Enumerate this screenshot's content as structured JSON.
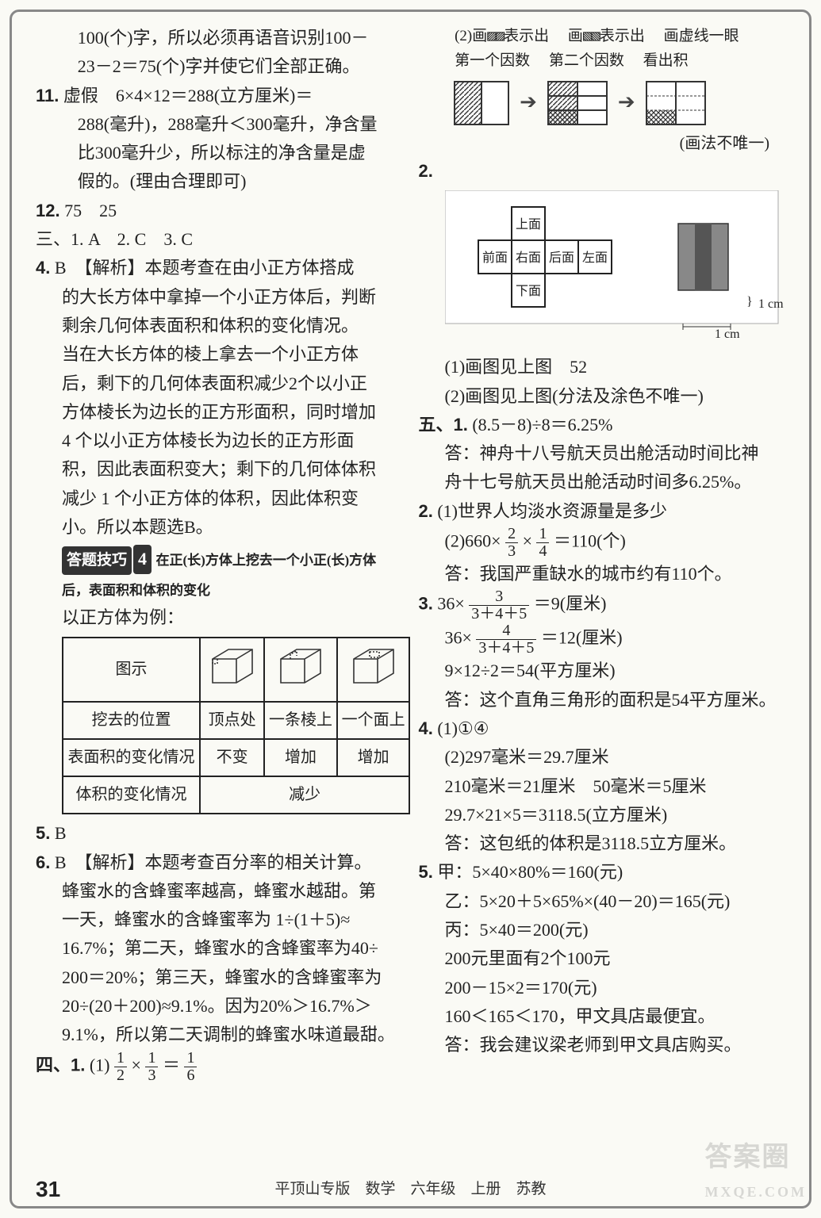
{
  "left": {
    "l1": "100(个)字，所以必须再语音识别100－",
    "l2": "23－2＝75(个)字并使它们全部正确。",
    "q11_num": "11.",
    "q11_a": "虚假　6×4×12＝288(立方厘米)＝",
    "q11_b": "288(毫升)，288毫升＜300毫升，净含量",
    "q11_c": "比300毫升少，所以标注的净含量是虚",
    "q11_d": "假的。(理由合理即可)",
    "q12_num": "12.",
    "q12": "75　25",
    "sec3": "三、1. A　2. C　3. C",
    "q4_num": "4.",
    "q4_hdr": "B　【解析】本题考查在由小正方体搭成",
    "q4a": "的大长方体中拿掉一个小正方体后，判断",
    "q4b": "剩余几何体表面积和体积的变化情况。",
    "q4c": "当在大长方体的棱上拿去一个小正方体",
    "q4d": "后，剩下的几何体表面积减少2个以小正",
    "q4e": "方体棱长为边长的正方形面积，同时增加",
    "q4f": "4 个以小正方体棱长为边长的正方形面",
    "q4g": "积，因此表面积变大；剩下的几何体体积",
    "q4h": "减少 1 个小正方体的体积，因此体积变",
    "q4i": "小。所以本题选B。",
    "tip_label": "答题技巧",
    "tip_num": "4",
    "tip_txt": "在正(长)方体上挖去一个小正(长)方体后，表面积和体积的变化",
    "tip_lead": "以正方体为例：",
    "tbl": {
      "r1c1": "图示",
      "r2c1": "挖去的位置",
      "r2c2": "顶点处",
      "r2c3": "一条棱上",
      "r2c4": "一个面上",
      "r3c1": "表面积的变化情况",
      "r3c2": "不变",
      "r3c3": "增加",
      "r3c4": "增加",
      "r4c1": "体积的变化情况",
      "r4c2": "减少"
    },
    "q5_num": "5.",
    "q5": "B",
    "q6_num": "6.",
    "q6_hdr": "B　【解析】本题考查百分率的相关计算。",
    "q6a": "蜂蜜水的含蜂蜜率越高，蜂蜜水越甜。第",
    "q6b": "一天，蜂蜜水的含蜂蜜率为 1÷(1＋5)≈",
    "q6c": "16.7%；第二天，蜂蜜水的含蜂蜜率为40÷",
    "q6d": "200＝20%；第三天，蜂蜜水的含蜂蜜率为",
    "q6e": "20÷(20＋200)≈9.1%。因为20%＞16.7%＞",
    "q6f": "9.1%，所以第二天调制的蜂蜜水味道最甜。"
  },
  "right": {
    "sec4": "四、1.",
    "eq1_pre": "(1)",
    "eq1_mid": "×",
    "eq1_eq": "＝",
    "f1n": "1",
    "f1d": "2",
    "f2n": "1",
    "f2d": "3",
    "f3n": "1",
    "f3d": "6",
    "d2a": "(2)画",
    "d2a2": "表示出",
    "d2b": "画",
    "d2b2": "表示出",
    "d2c": "画虚线一眼",
    "d2la": "第一个因数",
    "d2lb": "第二个因数",
    "d2lc": "看出积",
    "d2note": "(画法不唯一)",
    "q2_num": "2.",
    "grid_labels": {
      "up": "上面",
      "front": "前面",
      "right": "右面",
      "back": "后面",
      "left": "左面",
      "down": "下面"
    },
    "grid_unit_v": "1 cm",
    "grid_unit_h": "1 cm",
    "q2a": "(1)画图见上图　52",
    "q2b": "(2)画图见上图(分法及涂色不唯一)",
    "sec5": "五、1.",
    "w1a": "(8.5－8)÷8＝6.25%",
    "w1b": "答：神舟十八号航天员出舱活动时间比神",
    "w1c": "舟十七号航天员出舱活动时间多6.25%。",
    "w2_num": "2.",
    "w2a": "(1)世界人均淡水资源量是多少",
    "w2b_pre": "(2)660×",
    "w2b_mid": "×",
    "w2b_post": "＝110(个)",
    "ff1n": "2",
    "ff1d": "3",
    "ff2n": "1",
    "ff2d": "4",
    "w2c": "答：我国严重缺水的城市约有110个。",
    "w3_num": "3.",
    "w3a_pre": "36×",
    "w3a_post": "＝9(厘米)",
    "ff3n": "3",
    "ff3d": "3＋4＋5",
    "w3b_pre": "36×",
    "w3b_post": "＝12(厘米)",
    "ff4n": "4",
    "ff4d": "3＋4＋5",
    "w3c": "9×12÷2＝54(平方厘米)",
    "w3d": "答：这个直角三角形的面积是54平方厘米。",
    "w4_num": "4.",
    "w4a": "(1)①④",
    "w4b": "(2)297毫米＝29.7厘米",
    "w4c": "210毫米＝21厘米　50毫米＝5厘米",
    "w4d": "29.7×21×5＝3118.5(立方厘米)",
    "w4e": "答：这包纸的体积是3118.5立方厘米。",
    "w5_num": "5.",
    "w5a": "甲：5×40×80%＝160(元)",
    "w5b": "乙：5×20＋5×65%×(40－20)＝165(元)",
    "w5c": "丙：5×40＝200(元)",
    "w5d": "200元里面有2个100元",
    "w5e": "200－15×2＝170(元)",
    "w5f": "160＜165＜170，甲文具店最便宜。",
    "w5g": "答：我会建议梁老师到甲文具店购买。"
  },
  "footer": {
    "page": "31",
    "mid": "平顶山专版　数学　六年级　上册　苏教"
  },
  "style": {
    "text_color": "#222",
    "bg": "#fafaf5",
    "border": "#888",
    "table_border": "#222",
    "font_size_pt": 22
  }
}
